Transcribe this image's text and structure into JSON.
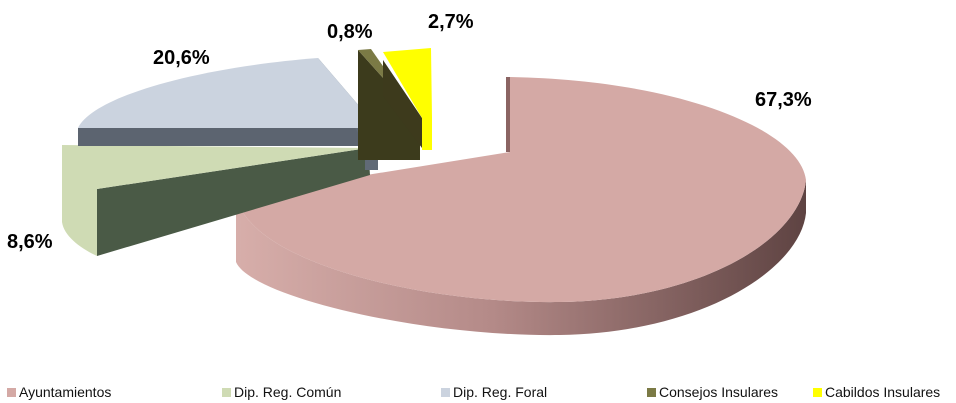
{
  "chart_data": {
    "type": "pie",
    "title": "",
    "three_d": true,
    "exploded": true,
    "legend_position": "bottom",
    "series": [
      {
        "label": "Ayuntamientos",
        "value": 67.3,
        "value_label": "67,3%",
        "color": "#d4a9a5",
        "dark_color": "#6d4c4b"
      },
      {
        "label": "Dip. Reg. Común",
        "value": 8.6,
        "value_label": "8,6%",
        "color": "#cfdbb4",
        "dark_color": "#4a5a46"
      },
      {
        "label": "Dip. Reg. Foral",
        "value": 20.6,
        "value_label": "20,6%",
        "color": "#cbd3df",
        "dark_color": "#5c6470"
      },
      {
        "label": "Consejos Insulares",
        "value": 0.8,
        "value_label": "0,8%",
        "color": "#7b7a45",
        "dark_color": "#3c3b1c"
      },
      {
        "label": "Cabildos Insulares",
        "value": 2.7,
        "value_label": "2,7%",
        "color": "#ffff00",
        "dark_color": "#3d3a1c"
      }
    ]
  }
}
